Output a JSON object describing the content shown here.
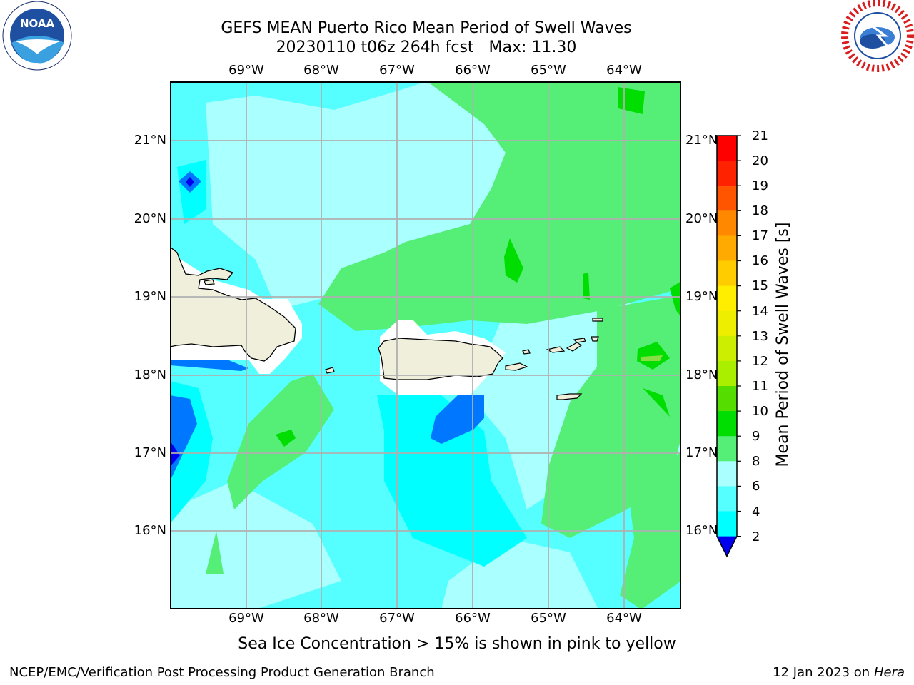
{
  "title": {
    "line1": "GEFS MEAN Puerto Rico Mean Period of Swell Waves",
    "line2_run": "20230110 t06z 264h fcst",
    "line2_max": "Max: 11.30"
  },
  "logos": {
    "left": {
      "icon": "noaa-logo",
      "text": "NOAA"
    },
    "right": {
      "icon": "nws-logo",
      "text": "NATIONAL WEATHER SERVICE"
    }
  },
  "map": {
    "lon_labels": [
      "69°W",
      "68°W",
      "67°W",
      "66°W",
      "65°W",
      "64°W"
    ],
    "lat_labels": [
      "21°N",
      "20°N",
      "19°N",
      "18°N",
      "17°N",
      "16°N"
    ],
    "lon_range": [
      -70.0,
      -63.3
    ],
    "lat_range": [
      15.0,
      21.75
    ]
  },
  "colorbar": {
    "label": "Mean Period of Swell Waves [s]",
    "ticks": [
      "21",
      "20",
      "19",
      "18",
      "17",
      "16",
      "15",
      "14",
      "13",
      "12",
      "11",
      "10",
      "9",
      "8",
      "6",
      "4",
      "2"
    ],
    "colors": [
      "#ff0000",
      "#ff2200",
      "#ff5500",
      "#ff8800",
      "#ffaa00",
      "#ffcc00",
      "#ffee00",
      "#eeee00",
      "#ccee00",
      "#aaee00",
      "#55dd00",
      "#00dd00",
      "#55ee77",
      "#aaffff",
      "#55ffff",
      "#00ffff",
      "#0077ff"
    ],
    "extend_color": "#0000ee"
  },
  "footnote": "Sea Ice Concentration > 15% is shown in pink to yellow",
  "credit_left": "NCEP/EMC/Verification Post Processing Product Generation Branch",
  "credit_right_date": "12 Jan 2023 on ",
  "credit_right_machine": "Hera"
}
